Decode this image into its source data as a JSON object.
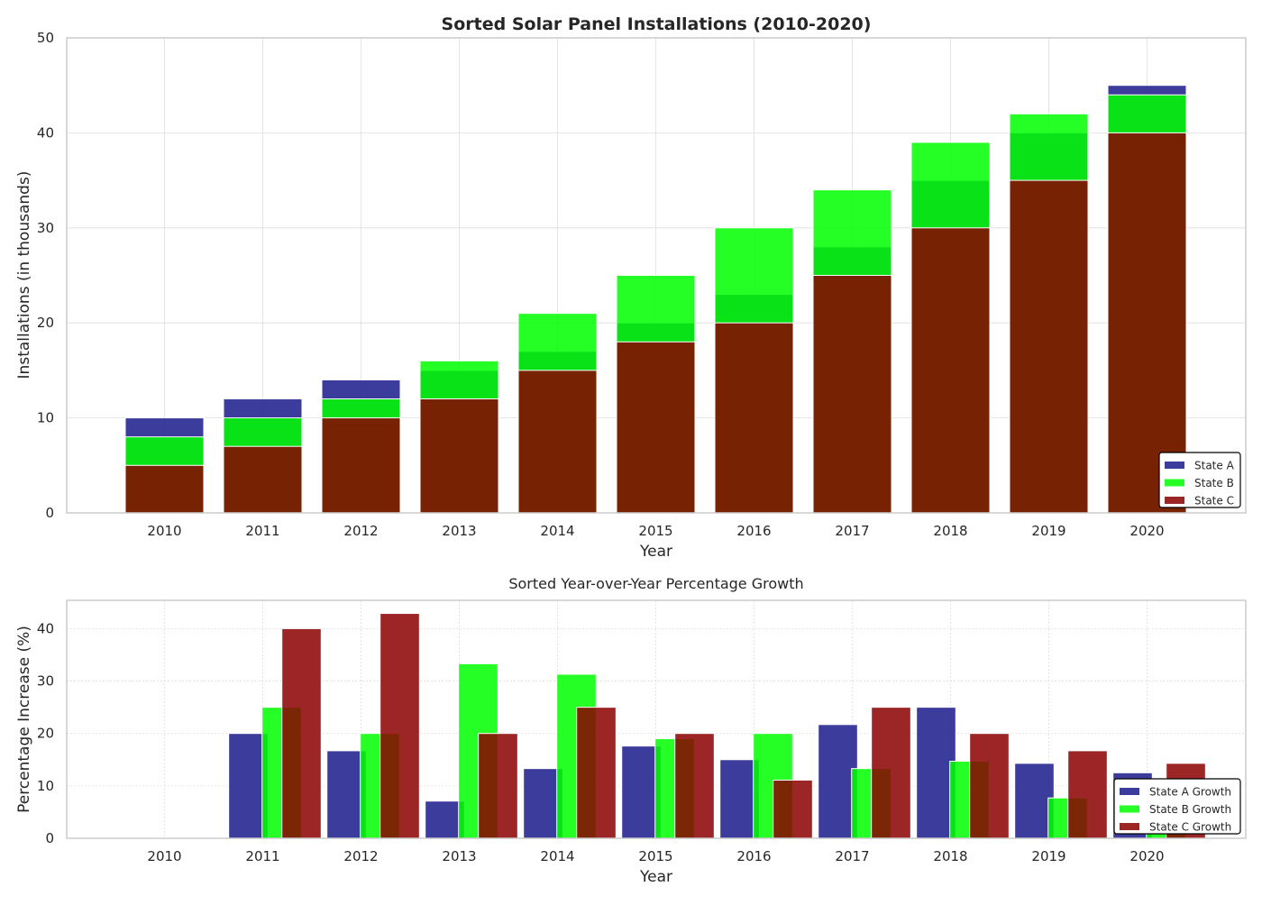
{
  "colors": {
    "state_a": "#1a1a8c",
    "state_b": "#00ff00",
    "state_c": "#8b0000",
    "grid": "#dddddd",
    "frame": "#cccccc"
  },
  "chart_data": [
    {
      "type": "bar",
      "title": "Sorted Solar Panel Installations (2010-2020)",
      "xlabel": "Year",
      "ylabel": "Installations (in thousands)",
      "categories": [
        "2010",
        "2011",
        "2012",
        "2013",
        "2014",
        "2015",
        "2016",
        "2017",
        "2018",
        "2019",
        "2020"
      ],
      "ylim": [
        0,
        50
      ],
      "yticks": [
        "0",
        "10",
        "20",
        "30",
        "40",
        "50"
      ],
      "grid": true,
      "legend_position": "lower-right",
      "series": [
        {
          "name": "State A",
          "color": "#1a1a8c",
          "values": [
            10,
            12,
            14,
            15,
            17,
            20,
            23,
            28,
            35,
            40,
            45
          ]
        },
        {
          "name": "State B",
          "color": "#00ff00",
          "values": [
            8,
            10,
            12,
            16,
            21,
            25,
            30,
            34,
            39,
            42,
            44
          ]
        },
        {
          "name": "State C",
          "color": "#8b0000",
          "values": [
            5,
            7,
            10,
            12,
            15,
            18,
            20,
            25,
            30,
            35,
            40
          ]
        }
      ]
    },
    {
      "type": "bar",
      "title": "Sorted Year-over-Year Percentage Growth",
      "xlabel": "Year",
      "ylabel": "Percentage Increase (%)",
      "categories": [
        "2010",
        "2011",
        "2012",
        "2013",
        "2014",
        "2015",
        "2016",
        "2017",
        "2018",
        "2019",
        "2020"
      ],
      "ylim": [
        0,
        45.4
      ],
      "yticks": [
        "0",
        "10",
        "20",
        "30",
        "40"
      ],
      "grid": true,
      "legend_position": "lower-right",
      "series": [
        {
          "name": "State A Growth",
          "color": "#1a1a8c",
          "values": [
            0,
            20,
            16.7,
            7.1,
            13.3,
            17.6,
            15,
            21.7,
            25,
            14.3,
            12.5
          ]
        },
        {
          "name": "State B Growth",
          "color": "#00ff00",
          "values": [
            0,
            25,
            20,
            33.3,
            31.3,
            19,
            20,
            13.3,
            14.7,
            7.7,
            4.8
          ]
        },
        {
          "name": "State C Growth",
          "color": "#8b0000",
          "values": [
            0,
            40,
            42.9,
            20,
            25,
            20,
            11.1,
            25,
            20,
            16.7,
            14.3
          ]
        }
      ]
    }
  ]
}
